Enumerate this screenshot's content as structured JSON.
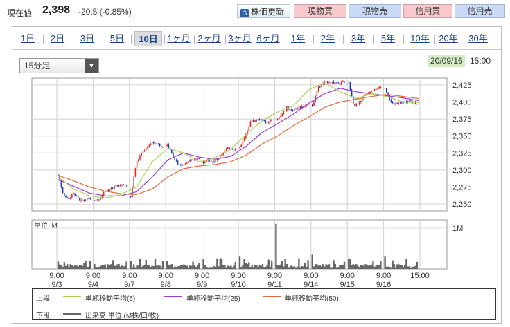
{
  "header": {
    "price_label": "現在値",
    "price_value": "2,398",
    "price_change": "-20.5 (-0.85%)",
    "refresh_label": "株価更新",
    "buttons": [
      "現物買",
      "現物売",
      "信用買",
      "信用売"
    ]
  },
  "tabs": [
    "1日",
    "2日",
    "3日",
    "5日",
    "10日",
    "1ヶ月",
    "2ヶ月",
    "3ヶ月",
    "6ヶ月",
    "1年",
    "2年",
    "3年",
    "5年",
    "10年",
    "20年",
    "30年"
  ],
  "active_tab": "10日",
  "interval_select": {
    "value": "15分足"
  },
  "timestamp": {
    "date": "20/09/16",
    "time": "15:00"
  },
  "legend": {
    "upper_label": "上段:",
    "lower_label": "下段:",
    "ma5": "単純移動平均(5)",
    "ma25": "単純移動平均(25)",
    "ma50": "単純移動平均(50)",
    "volume": "出来高 単位:(M株/口/枚)"
  },
  "colors": {
    "up": "#e0291f",
    "down": "#1f36c8",
    "ma5": "#a8cf57",
    "ma25": "#9b3ad0",
    "ma50": "#e5693a",
    "volume": "#666666",
    "buy_button": "#f7c9cd",
    "sell_button": "#c9d8f3",
    "timestamp_highlight": "#d4ecc4"
  },
  "chart_data": {
    "type": "candlestick",
    "price_ylim": [
      2240,
      2435
    ],
    "price_ticks": [
      "2,425",
      "2,400",
      "2,375",
      "2,350",
      "2,325",
      "2,300",
      "2,275",
      "2,250"
    ],
    "volume_unit_label": "単位: M",
    "volume_tick": "1M",
    "x_labels": [
      {
        "time": "9:00",
        "date": "9/3"
      },
      {
        "time": "9:00",
        "date": "9/4"
      },
      {
        "time": "9:00",
        "date": "9/7"
      },
      {
        "time": "9:00",
        "date": "9/8"
      },
      {
        "time": "9:00",
        "date": "9/9"
      },
      {
        "time": "9:00",
        "date": "9/10"
      },
      {
        "time": "9:00",
        "date": "9/11"
      },
      {
        "time": "9:00",
        "date": "9/14"
      },
      {
        "time": "9:00",
        "date": "9/15"
      },
      {
        "time": "9:00",
        "date": "9/16"
      },
      {
        "time": "15:00",
        "date": ""
      }
    ],
    "daily_path": [
      [
        2293,
        2262,
        2258,
        2266,
        2254,
        2256,
        2257
      ],
      [
        2256,
        2258,
        2270,
        2272,
        2275,
        2280,
        2278
      ],
      [
        2262,
        2310,
        2325,
        2334,
        2340,
        2338,
        2335
      ],
      [
        2335,
        2322,
        2310,
        2306,
        2314,
        2316,
        2317
      ],
      [
        2312,
        2316,
        2311,
        2320,
        2329,
        2333,
        2330
      ],
      [
        2333,
        2350,
        2372,
        2373,
        2375,
        2368,
        2374
      ],
      [
        2374,
        2380,
        2392,
        2388,
        2391,
        2394,
        2396
      ],
      [
        2396,
        2420,
        2427,
        2430,
        2428,
        2426,
        2430
      ],
      [
        2428,
        2394,
        2398,
        2410,
        2416,
        2421,
        2420
      ],
      [
        2420,
        2399,
        2398,
        2398,
        2399,
        2400,
        2398
      ]
    ],
    "ma5": [
      2290,
      2272,
      2262,
      2259,
      2264,
      2275,
      2312,
      2332,
      2325,
      2312,
      2318,
      2330,
      2352,
      2372,
      2385,
      2394,
      2418,
      2428,
      2415,
      2405,
      2412,
      2408,
      2400,
      2399
    ],
    "ma25": [
      2286,
      2276,
      2266,
      2262,
      2262,
      2268,
      2290,
      2315,
      2325,
      2319,
      2316,
      2320,
      2335,
      2355,
      2368,
      2382,
      2398,
      2412,
      2420,
      2415,
      2412,
      2409,
      2406,
      2402
    ],
    "ma50": [
      2292,
      2284,
      2275,
      2269,
      2265,
      2264,
      2272,
      2290,
      2302,
      2306,
      2308,
      2312,
      2322,
      2338,
      2350,
      2365,
      2378,
      2392,
      2400,
      2404,
      2408,
      2411,
      2408,
      2405
    ],
    "volume_peaks_M": [
      0.18,
      0.12,
      0.2,
      0.2,
      0.25,
      0.3,
      1.1,
      0.35,
      0.25,
      0.3
    ]
  }
}
